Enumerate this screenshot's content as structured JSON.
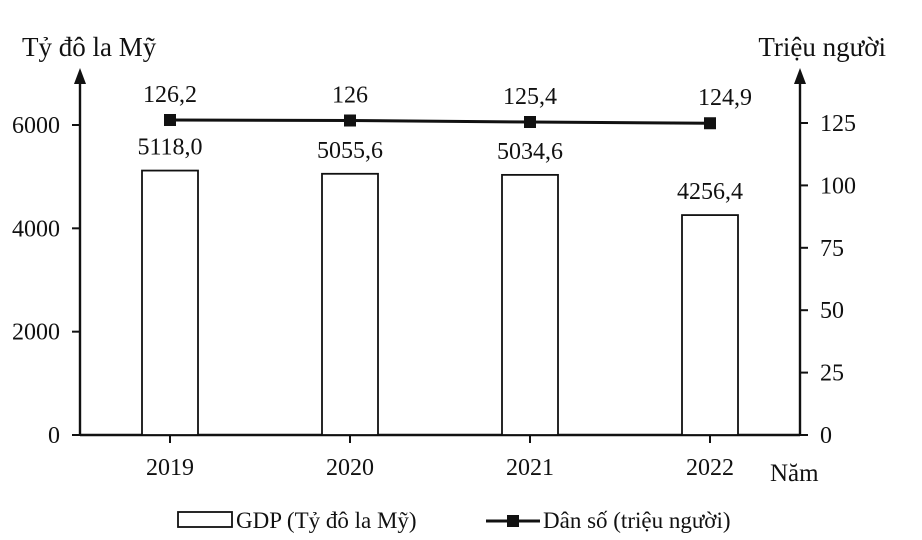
{
  "chart_data": {
    "type": "bar",
    "x_label": "Năm",
    "categories": [
      "2019",
      "2020",
      "2021",
      "2022"
    ],
    "left_axis": {
      "title": "Tỷ đô la Mỹ",
      "ticks": [
        "0",
        "2000",
        "4000",
        "6000"
      ],
      "range": [
        0,
        6000
      ]
    },
    "right_axis": {
      "title": "Triệu người",
      "ticks": [
        "0",
        "25",
        "50",
        "75",
        "100",
        "125"
      ],
      "range": [
        0,
        125
      ]
    },
    "series": [
      {
        "name": "GDP (Tỷ đô la Mỹ)",
        "kind": "bar",
        "axis": "left",
        "values": [
          5118.0,
          5055.6,
          5034.6,
          4256.4
        ],
        "labels": [
          "5118,0",
          "5055,6",
          "5034,6",
          "4256,4"
        ]
      },
      {
        "name": "Dân số (triệu người)",
        "kind": "line",
        "axis": "right",
        "values": [
          126.2,
          126,
          125.4,
          124.9
        ],
        "labels": [
          "126,2",
          "126",
          "125,4",
          "124,9"
        ]
      }
    ],
    "grid": false,
    "legend_position": "bottom-center"
  }
}
